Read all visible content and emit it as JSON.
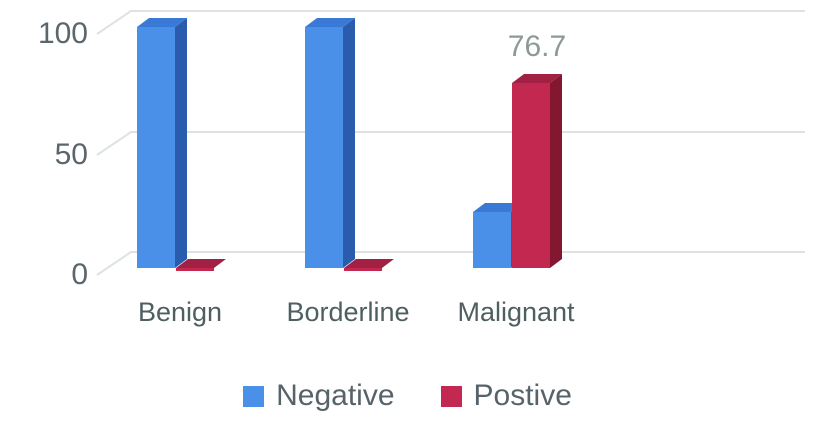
{
  "chart_data": {
    "type": "bar",
    "style": "3d-clustered-column",
    "title": "",
    "xlabel": "",
    "ylabel": "",
    "categories": [
      "Benign",
      "Borderline",
      "Malignant"
    ],
    "series": [
      {
        "name": "Negative",
        "values": [
          100,
          100,
          23.3
        ],
        "color": "#4A8FE8",
        "color_side": "#2A5CAE",
        "color_top": "#3A79D6"
      },
      {
        "name": "Postive",
        "values": [
          0,
          0,
          76.7
        ],
        "color": "#C22850",
        "color_side": "#82172F",
        "color_top": "#A32045"
      }
    ],
    "data_labels": [
      {
        "series": 1,
        "category": 2,
        "text": "76.7"
      }
    ],
    "yticks": [
      "0",
      "50",
      "100"
    ],
    "ytick_values": [
      0,
      50,
      100
    ],
    "ylim": [
      0,
      100
    ],
    "grid": "horizontal",
    "legend_position": "bottom",
    "colors": {
      "background": "#ffffff",
      "grid": "#DCE3E2",
      "tick_text": "#5A666B",
      "category_text": "#4F5F60",
      "data_label_text": "#8C9996",
      "legend_text": "#57636A"
    }
  }
}
